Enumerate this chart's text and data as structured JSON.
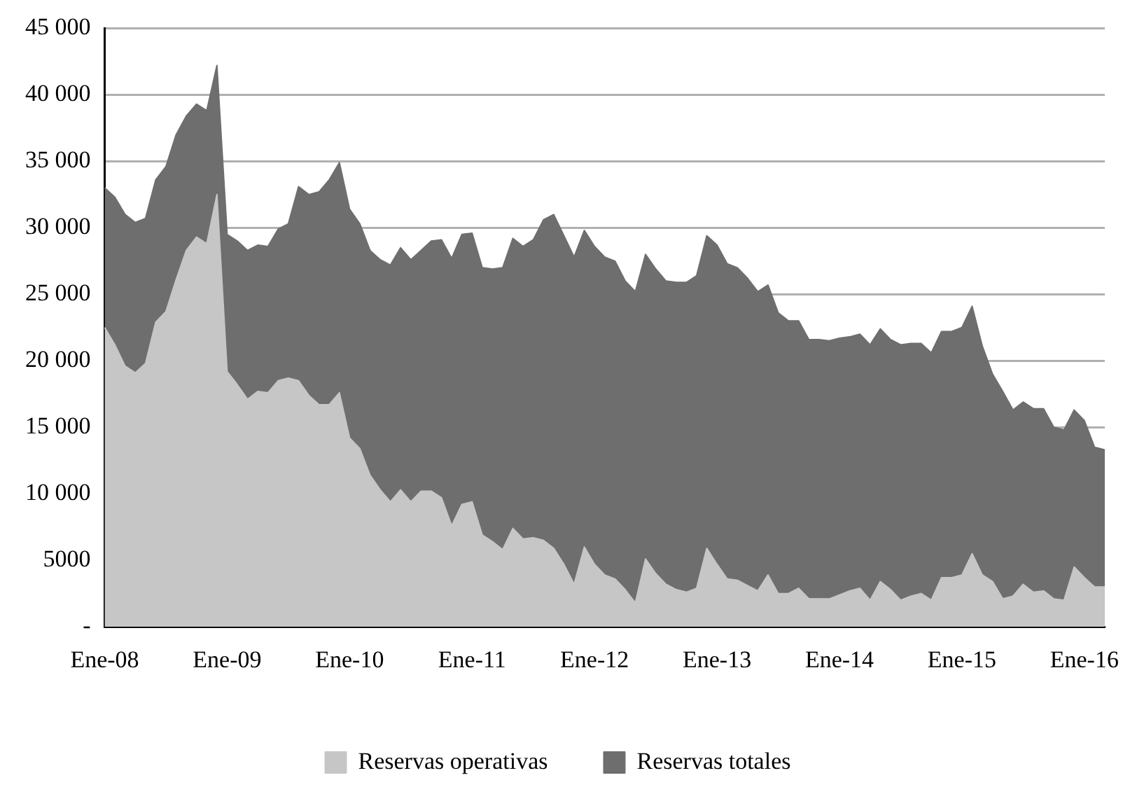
{
  "chart_data": {
    "type": "area",
    "categories": [
      "Ene-08",
      null,
      null,
      null,
      null,
      null,
      null,
      null,
      null,
      null,
      null,
      null,
      "Ene-09",
      null,
      null,
      null,
      null,
      null,
      null,
      null,
      null,
      null,
      null,
      null,
      "Ene-10",
      null,
      null,
      null,
      null,
      null,
      null,
      null,
      null,
      null,
      null,
      null,
      "Ene-11",
      null,
      null,
      null,
      null,
      null,
      null,
      null,
      null,
      null,
      null,
      null,
      "Ene-12",
      null,
      null,
      null,
      null,
      null,
      null,
      null,
      null,
      null,
      null,
      null,
      "Ene-13",
      null,
      null,
      null,
      null,
      null,
      null,
      null,
      null,
      null,
      null,
      null,
      "Ene-14",
      null,
      null,
      null,
      null,
      null,
      null,
      null,
      null,
      null,
      null,
      null,
      "Ene-15",
      null,
      null,
      null,
      null,
      null,
      null,
      null,
      null,
      null,
      null,
      null,
      "Ene-16",
      null,
      null
    ],
    "series": [
      {
        "name": "Reservas totales",
        "color": "#6e6e6e",
        "values": [
          33000,
          32300,
          31000,
          30400,
          30700,
          33600,
          34600,
          37000,
          38400,
          39300,
          38800,
          42200,
          29500,
          29000,
          28300,
          28700,
          28600,
          29900,
          30300,
          33100,
          32500,
          32700,
          33600,
          34900,
          31400,
          30300,
          28300,
          27600,
          27200,
          28500,
          27600,
          28300,
          29000,
          29100,
          27700,
          29500,
          29600,
          27000,
          26900,
          27000,
          29200,
          28600,
          29100,
          30600,
          31000,
          29400,
          27800,
          29800,
          28600,
          27800,
          27500,
          26000,
          25200,
          28000,
          26900,
          26000,
          25900,
          25900,
          26400,
          29400,
          28700,
          27300,
          27000,
          26200,
          25200,
          25700,
          23600,
          23000,
          23000,
          21600,
          21600,
          21500,
          21700,
          21800,
          22000,
          21200,
          22400,
          21600,
          21200,
          21300,
          21300,
          20600,
          22200,
          22200,
          22500,
          24100,
          21100,
          19000,
          17700,
          16300,
          16900,
          16400,
          16400,
          15000,
          14800,
          16300,
          15500,
          13500,
          13300
        ]
      },
      {
        "name": "Reservas operativas",
        "color": "#c6c6c6",
        "values": [
          22500,
          21200,
          19600,
          19100,
          19800,
          22900,
          23700,
          26100,
          28300,
          29300,
          28800,
          32500,
          19200,
          18200,
          17100,
          17700,
          17600,
          18500,
          18700,
          18500,
          17400,
          16700,
          16700,
          17600,
          14200,
          13400,
          11400,
          10300,
          9400,
          10300,
          9400,
          10200,
          10200,
          9700,
          7600,
          9200,
          9400,
          6900,
          6400,
          5800,
          7400,
          6600,
          6700,
          6500,
          5900,
          4700,
          3200,
          6000,
          4700,
          3900,
          3600,
          2800,
          1800,
          5100,
          4000,
          3200,
          2800,
          2600,
          2900,
          5900,
          4700,
          3600,
          3500,
          3100,
          2700,
          3900,
          2500,
          2500,
          2900,
          2100,
          2100,
          2100,
          2400,
          2700,
          2900,
          2000,
          3400,
          2800,
          2000,
          2300,
          2500,
          2000,
          3700,
          3700,
          3900,
          5500,
          3900,
          3400,
          2100,
          2300,
          3200,
          2600,
          2700,
          2100,
          2000,
          4500,
          3700,
          3000,
          3000
        ]
      }
    ],
    "ylim": [
      0,
      45000
    ],
    "yticks": [
      {
        "value": 0,
        "label": "-"
      },
      5000,
      {
        "value": 10000,
        "label": "10 000"
      },
      {
        "value": 15000,
        "label": "15 000"
      },
      {
        "value": 20000,
        "label": "20 000"
      },
      {
        "value": 25000,
        "label": "25 000"
      },
      {
        "value": 30000,
        "label": "30 000"
      },
      {
        "value": 35000,
        "label": "35 000"
      },
      {
        "value": 40000,
        "label": "40 000"
      },
      {
        "value": 45000,
        "label": "45 000"
      }
    ],
    "grid": "y",
    "legend": "bottom",
    "marker": "none",
    "line_style": "solid"
  }
}
